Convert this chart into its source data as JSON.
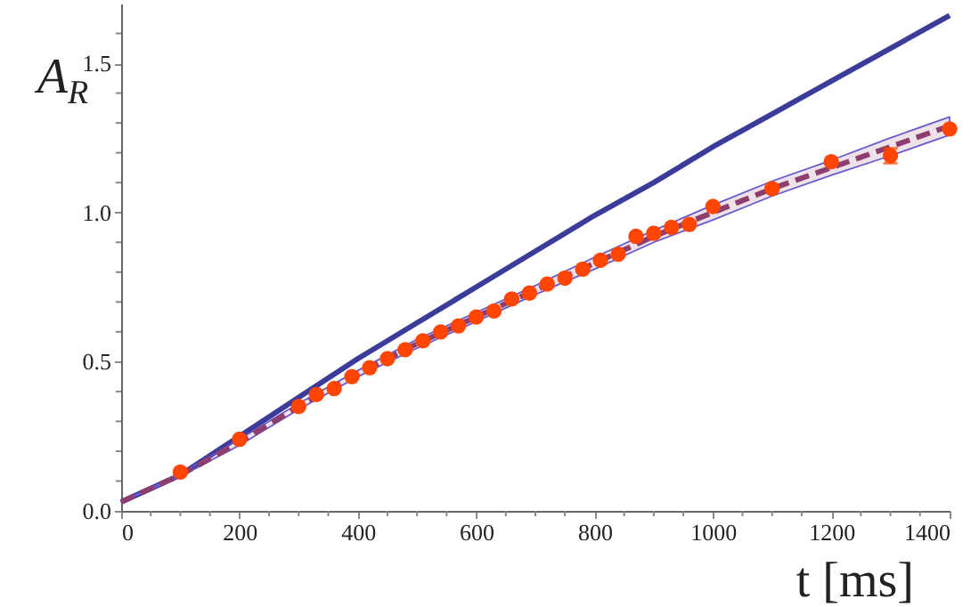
{
  "chart_data": {
    "type": "line",
    "xlabel": "t [ms]",
    "ylabel": "A$_{R}$",
    "xlim": [
      0,
      1400
    ],
    "ylim": [
      0,
      1.7
    ],
    "xticks": [
      0,
      {
        "value": 50,
        "label": null
      },
      {
        "value": 100,
        "label": null
      },
      {
        "value": 150,
        "label": null
      },
      200,
      {
        "value": 250,
        "label": null
      },
      {
        "value": 300,
        "label": null
      },
      {
        "value": 350,
        "label": null
      },
      400,
      {
        "value": 450,
        "label": null
      },
      {
        "value": 500,
        "label": null
      },
      {
        "value": 550,
        "label": null
      },
      600,
      {
        "value": 650,
        "label": null
      },
      {
        "value": 700,
        "label": null
      },
      {
        "value": 750,
        "label": null
      },
      800,
      {
        "value": 850,
        "label": null
      },
      {
        "value": 900,
        "label": null
      },
      {
        "value": 950,
        "label": null
      },
      1000,
      {
        "value": 1050,
        "label": null
      },
      {
        "value": 1100,
        "label": null
      },
      {
        "value": 1150,
        "label": null
      },
      1200,
      {
        "value": 1250,
        "label": null
      },
      {
        "value": 1300,
        "label": null
      },
      {
        "value": 1350,
        "label": null
      },
      1400
    ],
    "yticks": [
      {
        "value": 0,
        "label": "0.0"
      },
      {
        "value": 0.1,
        "label": null
      },
      {
        "value": 0.2,
        "label": null
      },
      {
        "value": 0.3,
        "label": null
      },
      {
        "value": 0.4,
        "label": null
      },
      {
        "value": 0.5,
        "label": "0.5"
      },
      {
        "value": 0.6,
        "label": null
      },
      {
        "value": 0.7,
        "label": null
      },
      {
        "value": 0.8,
        "label": null
      },
      {
        "value": 0.9,
        "label": null
      },
      {
        "value": 1.0,
        "label": "1.0"
      },
      {
        "value": 1.1,
        "label": null
      },
      {
        "value": 1.2,
        "label": null
      },
      {
        "value": 1.3,
        "label": null
      },
      {
        "value": 1.4,
        "label": null
      },
      {
        "value": 1.5,
        "label": "1.5"
      },
      {
        "value": 1.6,
        "label": null
      }
    ],
    "grid": false,
    "series": [
      {
        "type": "line",
        "color": "#3b3b9a",
        "line_style": "solid",
        "x": [
          0,
          100,
          200,
          300,
          400,
          500,
          600,
          700,
          800,
          900,
          1000,
          1100,
          1200,
          1300,
          1400
        ],
        "values": [
          0.03,
          0.12,
          0.25,
          0.38,
          0.51,
          0.63,
          0.75,
          0.87,
          0.99,
          1.1,
          1.22,
          1.33,
          1.44,
          1.55,
          1.66
        ]
      },
      {
        "type": "line",
        "color": "#8e3e6e",
        "line_style": "dashed",
        "x": [
          0,
          100,
          200,
          300,
          400,
          500,
          600,
          700,
          800,
          900,
          1000,
          1100,
          1200,
          1300,
          1400
        ],
        "values": [
          0.03,
          0.12,
          0.23,
          0.35,
          0.46,
          0.56,
          0.65,
          0.74,
          0.83,
          0.92,
          1.0,
          1.08,
          1.15,
          1.22,
          1.29
        ],
        "lower": [
          0.03,
          0.115,
          0.22,
          0.34,
          0.45,
          0.545,
          0.635,
          0.725,
          0.81,
          0.9,
          0.975,
          1.055,
          1.125,
          1.19,
          1.26
        ],
        "upper": [
          0.03,
          0.125,
          0.24,
          0.36,
          0.47,
          0.575,
          0.665,
          0.755,
          0.85,
          0.94,
          1.025,
          1.105,
          1.175,
          1.25,
          1.32
        ]
      },
      {
        "type": "scatter",
        "color": "#ff4500",
        "marker": "circle",
        "x": [
          100,
          200,
          300,
          330,
          360,
          390,
          420,
          450,
          480,
          510,
          540,
          570,
          600,
          630,
          660,
          690,
          720,
          750,
          780,
          810,
          840,
          870,
          900,
          930,
          960,
          1000,
          1100,
          1200,
          1300,
          1400
        ],
        "values": [
          0.13,
          0.24,
          0.35,
          0.39,
          0.41,
          0.45,
          0.48,
          0.51,
          0.54,
          0.57,
          0.6,
          0.62,
          0.65,
          0.67,
          0.71,
          0.73,
          0.76,
          0.78,
          0.81,
          0.84,
          0.86,
          0.92,
          0.93,
          0.95,
          0.96,
          1.02,
          1.08,
          1.17,
          1.19,
          1.28
        ],
        "errors": [
          null,
          null,
          null,
          null,
          null,
          null,
          null,
          null,
          null,
          null,
          null,
          null,
          null,
          null,
          null,
          null,
          null,
          null,
          null,
          null,
          null,
          null,
          null,
          null,
          null,
          null,
          null,
          null,
          0.025,
          null
        ]
      }
    ]
  }
}
